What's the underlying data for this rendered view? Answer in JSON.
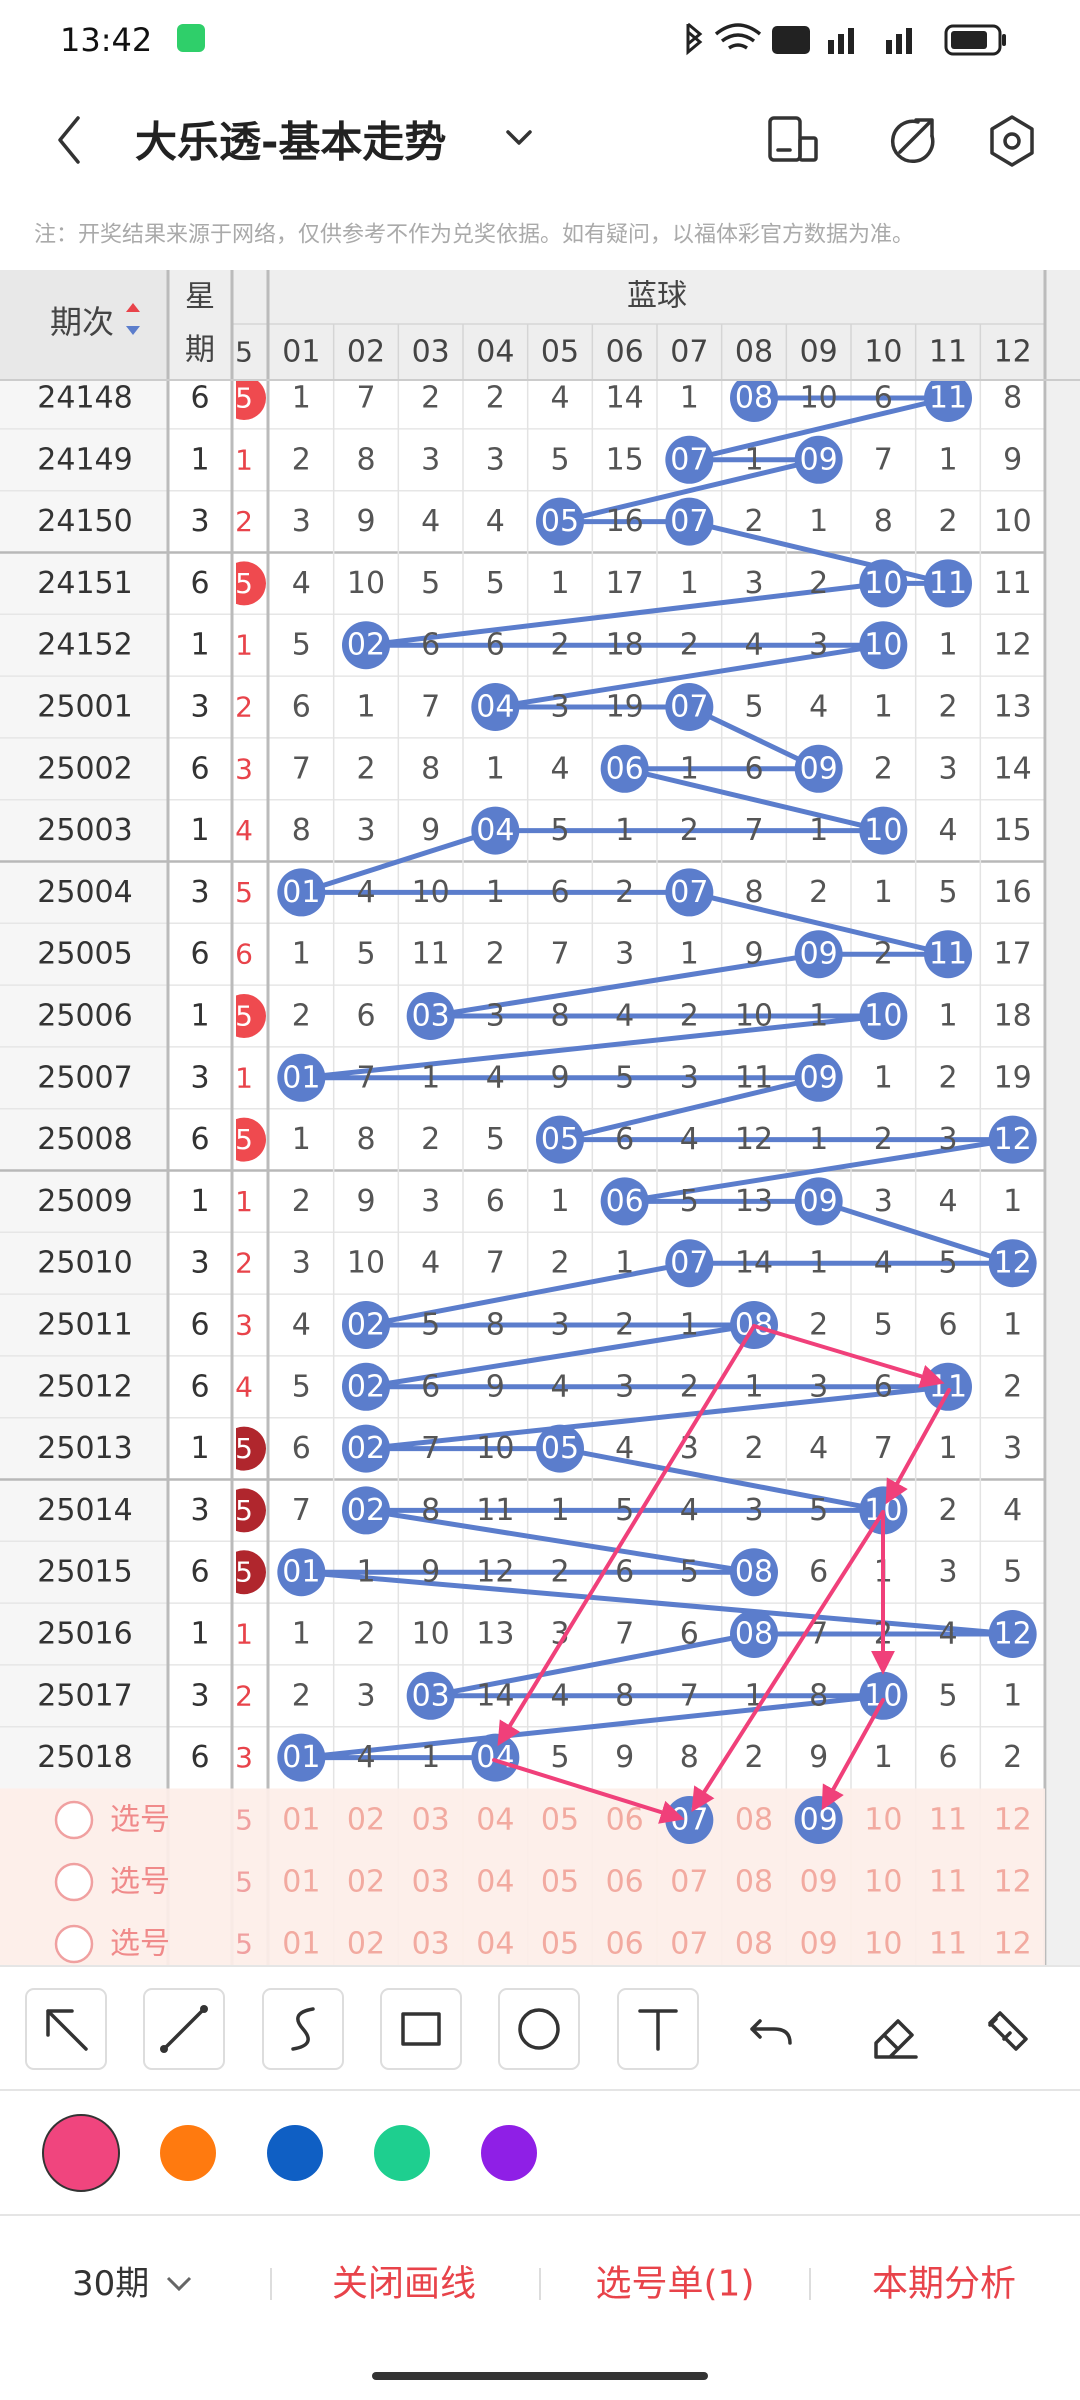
{
  "status_bar": {
    "time": "13:42"
  },
  "header": {
    "title": "大乐透-基本走势"
  },
  "notice": "注：开奖结果来源于网络，仅供参考不作为兑奖依据。如有疑问，以福体彩官方数据为准。",
  "table": {
    "col_period": "期次",
    "col_week": [
      "星",
      "期"
    ],
    "group": "蓝球",
    "front_header": "5",
    "columns": [
      "01",
      "02",
      "03",
      "04",
      "05",
      "06",
      "07",
      "08",
      "09",
      "10",
      "11",
      "12"
    ],
    "rows": [
      {
        "period": "24148",
        "week": "6",
        "front": "5",
        "front_style": "ball",
        "cells": [
          "1",
          "7",
          "2",
          "2",
          "4",
          "14",
          "1",
          "08",
          "10",
          "6",
          "11",
          "8"
        ],
        "hits": [
          7,
          10
        ]
      },
      {
        "period": "24149",
        "week": "1",
        "front": "1",
        "front_style": "text",
        "cells": [
          "2",
          "8",
          "3",
          "3",
          "5",
          "15",
          "07",
          "1",
          "09",
          "7",
          "1",
          "9"
        ],
        "hits": [
          6,
          8
        ]
      },
      {
        "period": "24150",
        "week": "3",
        "front": "2",
        "front_style": "text",
        "cells": [
          "3",
          "9",
          "4",
          "4",
          "05",
          "16",
          "07",
          "2",
          "1",
          "8",
          "2",
          "10"
        ],
        "hits": [
          4,
          6
        ]
      },
      {
        "period": "24151",
        "week": "6",
        "front": "5",
        "front_style": "ball",
        "cells": [
          "4",
          "10",
          "5",
          "5",
          "1",
          "17",
          "1",
          "3",
          "2",
          "10",
          "11",
          "11"
        ],
        "hits": [
          9,
          10
        ]
      },
      {
        "period": "24152",
        "week": "1",
        "front": "1",
        "front_style": "text",
        "cells": [
          "5",
          "02",
          "6",
          "6",
          "2",
          "18",
          "2",
          "4",
          "3",
          "10",
          "1",
          "12"
        ],
        "hits": [
          1,
          9
        ]
      },
      {
        "period": "25001",
        "week": "3",
        "front": "2",
        "front_style": "text",
        "cells": [
          "6",
          "1",
          "7",
          "04",
          "3",
          "19",
          "07",
          "5",
          "4",
          "1",
          "2",
          "13"
        ],
        "hits": [
          3,
          6
        ]
      },
      {
        "period": "25002",
        "week": "6",
        "front": "3",
        "front_style": "text",
        "cells": [
          "7",
          "2",
          "8",
          "1",
          "4",
          "06",
          "1",
          "6",
          "09",
          "2",
          "3",
          "14"
        ],
        "hits": [
          5,
          8
        ]
      },
      {
        "period": "25003",
        "week": "1",
        "front": "4",
        "front_style": "text",
        "cells": [
          "8",
          "3",
          "9",
          "04",
          "5",
          "1",
          "2",
          "7",
          "1",
          "10",
          "4",
          "15"
        ],
        "hits": [
          3,
          9
        ]
      },
      {
        "period": "25004",
        "week": "3",
        "front": "5",
        "front_style": "text",
        "cells": [
          "01",
          "4",
          "10",
          "1",
          "6",
          "2",
          "07",
          "8",
          "2",
          "1",
          "5",
          "16"
        ],
        "hits": [
          0,
          6
        ]
      },
      {
        "period": "25005",
        "week": "6",
        "front": "6",
        "front_style": "text",
        "cells": [
          "1",
          "5",
          "11",
          "2",
          "7",
          "3",
          "1",
          "9",
          "09",
          "2",
          "11",
          "17"
        ],
        "hits": [
          8,
          10
        ]
      },
      {
        "period": "25006",
        "week": "1",
        "front": "5",
        "front_style": "ball",
        "cells": [
          "2",
          "6",
          "03",
          "3",
          "8",
          "4",
          "2",
          "10",
          "1",
          "10",
          "1",
          "18"
        ],
        "hits": [
          2,
          9
        ]
      },
      {
        "period": "25007",
        "week": "3",
        "front": "1",
        "front_style": "text",
        "cells": [
          "01",
          "7",
          "1",
          "4",
          "9",
          "5",
          "3",
          "11",
          "09",
          "1",
          "2",
          "19"
        ],
        "hits": [
          0,
          8
        ]
      },
      {
        "period": "25008",
        "week": "6",
        "front": "5",
        "front_style": "ball",
        "cells": [
          "1",
          "8",
          "2",
          "5",
          "05",
          "6",
          "4",
          "12",
          "1",
          "2",
          "3",
          "12"
        ],
        "hits": [
          4,
          11
        ]
      },
      {
        "period": "25009",
        "week": "1",
        "front": "1",
        "front_style": "text",
        "cells": [
          "2",
          "9",
          "3",
          "6",
          "1",
          "06",
          "5",
          "13",
          "09",
          "3",
          "4",
          "1"
        ],
        "hits": [
          5,
          8
        ]
      },
      {
        "period": "25010",
        "week": "3",
        "front": "2",
        "front_style": "text",
        "cells": [
          "3",
          "10",
          "4",
          "7",
          "2",
          "1",
          "07",
          "14",
          "1",
          "4",
          "5",
          "12"
        ],
        "hits": [
          6,
          11
        ]
      },
      {
        "period": "25011",
        "week": "6",
        "front": "3",
        "front_style": "text",
        "cells": [
          "4",
          "02",
          "5",
          "8",
          "3",
          "2",
          "1",
          "08",
          "2",
          "5",
          "6",
          "1"
        ],
        "hits": [
          1,
          7
        ]
      },
      {
        "period": "25012",
        "week": "6",
        "front": "4",
        "front_style": "text",
        "cells": [
          "5",
          "02",
          "6",
          "9",
          "4",
          "3",
          "2",
          "1",
          "3",
          "6",
          "11",
          "2"
        ],
        "hits": [
          1,
          10
        ]
      },
      {
        "period": "25013",
        "week": "1",
        "front": "5",
        "front_style": "dark",
        "cells": [
          "6",
          "02",
          "7",
          "10",
          "05",
          "4",
          "3",
          "2",
          "4",
          "7",
          "1",
          "3"
        ],
        "hits": [
          1,
          4
        ]
      },
      {
        "period": "25014",
        "week": "3",
        "front": "5",
        "front_style": "dark",
        "cells": [
          "7",
          "02",
          "8",
          "11",
          "1",
          "5",
          "4",
          "3",
          "5",
          "10",
          "2",
          "4"
        ],
        "hits": [
          1,
          9
        ]
      },
      {
        "period": "25015",
        "week": "6",
        "front": "5",
        "front_style": "dark",
        "cells": [
          "01",
          "1",
          "9",
          "12",
          "2",
          "6",
          "5",
          "08",
          "6",
          "1",
          "3",
          "5"
        ],
        "hits": [
          0,
          7
        ]
      },
      {
        "period": "25016",
        "week": "1",
        "front": "1",
        "front_style": "text",
        "cells": [
          "1",
          "2",
          "10",
          "13",
          "3",
          "7",
          "6",
          "08",
          "7",
          "2",
          "4",
          "12"
        ],
        "hits": [
          7,
          11
        ]
      },
      {
        "period": "25017",
        "week": "3",
        "front": "2",
        "front_style": "text",
        "cells": [
          "2",
          "3",
          "03",
          "14",
          "4",
          "8",
          "7",
          "1",
          "8",
          "10",
          "5",
          "1"
        ],
        "hits": [
          2,
          9
        ]
      },
      {
        "period": "25018",
        "week": "6",
        "front": "3",
        "front_style": "text",
        "cells": [
          "01",
          "4",
          "1",
          "04",
          "5",
          "9",
          "8",
          "2",
          "9",
          "1",
          "6",
          "2"
        ],
        "hits": [
          0,
          3
        ]
      }
    ]
  },
  "pick_rows": [
    {
      "label": "选号",
      "front": "5",
      "numbers": [
        "01",
        "02",
        "03",
        "04",
        "05",
        "06",
        "07",
        "08",
        "09",
        "10",
        "11",
        "12"
      ],
      "picked": [
        6,
        8
      ]
    },
    {
      "label": "选号",
      "front": "5",
      "numbers": [
        "01",
        "02",
        "03",
        "04",
        "05",
        "06",
        "07",
        "08",
        "09",
        "10",
        "11",
        "12"
      ],
      "picked": []
    },
    {
      "label": "选号",
      "front": "5",
      "numbers": [
        "01",
        "02",
        "03",
        "04",
        "05",
        "06",
        "07",
        "08",
        "09",
        "10",
        "11",
        "12"
      ],
      "picked": []
    }
  ],
  "pen_colors": [
    "#f0457e",
    "#ff7a0f",
    "#0f5fc4",
    "#1ecf8f",
    "#8f1fe6"
  ],
  "footer": {
    "period": "30期",
    "buttons": [
      "关闭画线",
      "选号单(1)",
      "本期分析"
    ]
  }
}
